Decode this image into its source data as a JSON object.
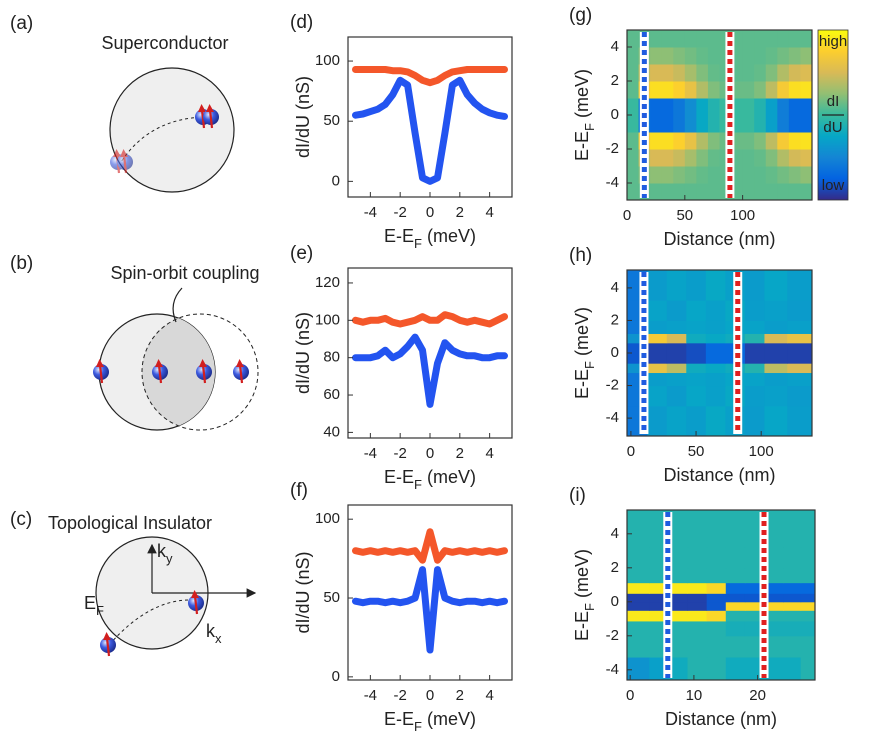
{
  "diagrams": {
    "a": {
      "label": "(a)",
      "title": "Superconductor"
    },
    "b": {
      "label": "(b)",
      "title": "Spin-orbit coupling"
    },
    "c": {
      "label": "(c)",
      "title": "Topological Insulator",
      "ky": [
        "k",
        "y"
      ],
      "kx": [
        "k",
        "x"
      ],
      "ef": [
        "E",
        "F"
      ]
    }
  },
  "chart_data": [
    {
      "type": "line",
      "label": "(d)",
      "xlabel": [
        "E-E",
        "F",
        " (meV)"
      ],
      "ylabel": "dI/dU (nS)",
      "x": [
        -5,
        -4.5,
        -4,
        -3.5,
        -3,
        -2.5,
        -2,
        -1.5,
        -1,
        -0.5,
        0,
        0.5,
        1,
        1.5,
        2,
        2.5,
        3,
        3.5,
        4,
        4.5,
        5
      ],
      "series": [
        {
          "color": "#f4572a",
          "values": [
            93,
            93,
            93,
            93,
            93,
            92,
            92,
            91,
            88,
            84,
            82,
            84,
            88,
            91,
            92,
            93,
            93,
            93,
            93,
            93,
            93
          ]
        },
        {
          "color": "#2354f0",
          "values": [
            55,
            56,
            58,
            60,
            64,
            72,
            84,
            80,
            40,
            3,
            0,
            3,
            40,
            80,
            84,
            72,
            65,
            60,
            57,
            55,
            54
          ]
        }
      ],
      "xlim": [
        -5.5,
        5.5
      ],
      "ylim": [
        -13,
        120
      ],
      "xticks": [
        -4,
        -2,
        0,
        2,
        4
      ],
      "yticks": [
        0,
        50,
        100
      ]
    },
    {
      "type": "line",
      "label": "(e)",
      "xlabel": [
        "E-E",
        "F",
        " (meV)"
      ],
      "ylabel": "dI/dU (nS)",
      "x": [
        -5,
        -4.5,
        -4,
        -3.5,
        -3,
        -2.5,
        -2,
        -1.5,
        -1,
        -0.5,
        0,
        0.5,
        1,
        1.5,
        2,
        2.5,
        3,
        3.5,
        4,
        4.5,
        5
      ],
      "series": [
        {
          "color": "#f4572a",
          "values": [
            100,
            99,
            100,
            100,
            101,
            99,
            98,
            99,
            100,
            102,
            100,
            100,
            103,
            102,
            100,
            99,
            100,
            99,
            98,
            100,
            102
          ]
        },
        {
          "color": "#2354f0",
          "values": [
            80,
            80,
            80,
            81,
            84,
            80,
            82,
            86,
            91,
            84,
            55,
            77,
            88,
            84,
            82,
            81,
            81,
            80,
            80,
            81,
            81
          ]
        }
      ],
      "xlim": [
        -5.5,
        5.5
      ],
      "ylim": [
        37,
        128
      ],
      "xticks": [
        -4,
        -2,
        0,
        2,
        4
      ],
      "yticks": [
        40,
        60,
        80,
        100,
        120
      ]
    },
    {
      "type": "line",
      "label": "(f)",
      "xlabel": [
        "E-E",
        "F",
        " (meV)"
      ],
      "ylabel": "dI/dU (nS)",
      "x": [
        -5,
        -4.5,
        -4,
        -3.5,
        -3,
        -2.5,
        -2,
        -1.5,
        -1,
        -0.5,
        0,
        0.5,
        1,
        1.5,
        2,
        2.5,
        3,
        3.5,
        4,
        4.5,
        5
      ],
      "series": [
        {
          "color": "#f4572a",
          "values": [
            80,
            79,
            80,
            79,
            80,
            79,
            80,
            79,
            80,
            74,
            92,
            74,
            80,
            79,
            80,
            79,
            80,
            79,
            80,
            79,
            80
          ]
        },
        {
          "color": "#2354f0",
          "values": [
            48,
            47,
            48,
            48,
            47,
            48,
            47,
            48,
            50,
            68,
            17,
            68,
            50,
            48,
            47,
            48,
            48,
            47,
            48,
            47,
            48
          ]
        }
      ],
      "xlim": [
        -5.5,
        5.5
      ],
      "ylim": [
        -2,
        109
      ],
      "xticks": [
        -4,
        -2,
        0,
        2,
        4
      ],
      "yticks": [
        0,
        50,
        100
      ]
    },
    {
      "type": "heatmap",
      "label": "(g)",
      "xlabel": "Distance (nm)",
      "ylabel": [
        "E-E",
        "F",
        " (meV)"
      ],
      "x": [
        5,
        15,
        25,
        35,
        45,
        55,
        65,
        75,
        85,
        95,
        105,
        115,
        125,
        135,
        145,
        155
      ],
      "y": [
        -4.5,
        -3.5,
        -2.5,
        -1.5,
        -0.5,
        0.5,
        1.5,
        2.5,
        3.5,
        4.5
      ],
      "z": [
        [
          0.55,
          0.55,
          0.55,
          0.55,
          0.55,
          0.55,
          0.55,
          0.55,
          0.55,
          0.55,
          0.55,
          0.55,
          0.55,
          0.55,
          0.55,
          0.55
        ],
        [
          0.55,
          0.6,
          0.62,
          0.62,
          0.6,
          0.58,
          0.56,
          0.55,
          0.55,
          0.55,
          0.55,
          0.55,
          0.56,
          0.58,
          0.6,
          0.62
        ],
        [
          0.55,
          0.7,
          0.75,
          0.75,
          0.72,
          0.66,
          0.6,
          0.56,
          0.55,
          0.55,
          0.55,
          0.56,
          0.6,
          0.68,
          0.74,
          0.76
        ],
        [
          0.55,
          0.85,
          0.92,
          0.92,
          0.88,
          0.8,
          0.68,
          0.6,
          0.57,
          0.57,
          0.57,
          0.6,
          0.7,
          0.85,
          0.92,
          0.93
        ],
        [
          0.5,
          0.2,
          0.15,
          0.15,
          0.2,
          0.28,
          0.38,
          0.45,
          0.5,
          0.5,
          0.5,
          0.45,
          0.35,
          0.22,
          0.15,
          0.15
        ],
        [
          0.5,
          0.2,
          0.15,
          0.15,
          0.2,
          0.28,
          0.38,
          0.45,
          0.5,
          0.5,
          0.5,
          0.45,
          0.35,
          0.22,
          0.15,
          0.15
        ],
        [
          0.55,
          0.85,
          0.92,
          0.92,
          0.88,
          0.8,
          0.68,
          0.6,
          0.57,
          0.57,
          0.57,
          0.6,
          0.7,
          0.85,
          0.92,
          0.93
        ],
        [
          0.55,
          0.7,
          0.75,
          0.75,
          0.72,
          0.66,
          0.6,
          0.56,
          0.55,
          0.55,
          0.55,
          0.56,
          0.6,
          0.68,
          0.74,
          0.76
        ],
        [
          0.55,
          0.6,
          0.62,
          0.62,
          0.6,
          0.58,
          0.56,
          0.55,
          0.55,
          0.55,
          0.55,
          0.55,
          0.56,
          0.58,
          0.6,
          0.62
        ],
        [
          0.55,
          0.55,
          0.55,
          0.55,
          0.55,
          0.55,
          0.55,
          0.55,
          0.55,
          0.55,
          0.55,
          0.55,
          0.55,
          0.55,
          0.55,
          0.55
        ]
      ],
      "clim": [
        0,
        1
      ],
      "colormap": [
        "#352a87",
        "#0363e1",
        "#1485d4",
        "#06a7c6",
        "#38b99e",
        "#92bf73",
        "#d9ba56",
        "#fcce2e",
        "#f9fb0e"
      ],
      "lines": [
        {
          "x": 15,
          "color": "#1f5ce0"
        },
        {
          "x": 89,
          "color": "#e0201f"
        }
      ],
      "colorbar": {
        "high": "high",
        "low": "low",
        "label": [
          "dI",
          "dU"
        ]
      },
      "xlim": [
        0,
        160
      ],
      "ylim": [
        -5,
        5
      ],
      "xticks": [
        0,
        50,
        100
      ],
      "yticks": [
        -4,
        -2,
        0,
        2,
        4
      ]
    },
    {
      "type": "heatmap",
      "label": "(h)",
      "xlabel": "Distance (nm)",
      "ylabel": [
        "E-E",
        "F",
        " (meV)"
      ],
      "x": [
        5,
        20,
        35,
        50,
        65,
        80,
        95,
        110,
        130
      ],
      "y": [
        -4,
        -2.5,
        -1.5,
        -0.9,
        -0.35,
        0.35,
        0.9,
        1.5,
        2.5,
        4
      ],
      "z": [
        [
          0.2,
          0.33,
          0.36,
          0.34,
          0.38,
          0.35,
          0.33,
          0.37,
          0.34
        ],
        [
          0.2,
          0.36,
          0.33,
          0.37,
          0.35,
          0.38,
          0.34,
          0.35,
          0.33
        ],
        [
          0.2,
          0.34,
          0.35,
          0.36,
          0.35,
          0.37,
          0.36,
          0.34,
          0.35
        ],
        [
          0.3,
          0.8,
          0.7,
          0.4,
          0.38,
          0.4,
          0.45,
          0.7,
          0.75
        ],
        [
          0.1,
          0.05,
          0.05,
          0.08,
          0.15,
          0.15,
          0.05,
          0.05,
          0.05
        ],
        [
          0.1,
          0.05,
          0.05,
          0.08,
          0.15,
          0.15,
          0.05,
          0.05,
          0.05
        ],
        [
          0.3,
          0.85,
          0.75,
          0.4,
          0.38,
          0.4,
          0.45,
          0.75,
          0.8
        ],
        [
          0.2,
          0.34,
          0.35,
          0.36,
          0.35,
          0.37,
          0.36,
          0.34,
          0.35
        ],
        [
          0.2,
          0.36,
          0.33,
          0.37,
          0.35,
          0.38,
          0.34,
          0.35,
          0.33
        ],
        [
          0.2,
          0.33,
          0.36,
          0.34,
          0.38,
          0.35,
          0.33,
          0.37,
          0.34
        ]
      ],
      "clim": [
        0,
        1
      ],
      "colormap": [
        "#352a87",
        "#0363e1",
        "#1485d4",
        "#06a7c6",
        "#38b99e",
        "#92bf73",
        "#d9ba56",
        "#fcce2e",
        "#f9fb0e"
      ],
      "lines": [
        {
          "x": 10,
          "color": "#1f5ce0"
        },
        {
          "x": 82,
          "color": "#e0201f"
        }
      ],
      "xlim": [
        -3,
        139
      ],
      "ylim": [
        -5.1,
        5.1
      ],
      "xticks": [
        0,
        50,
        100
      ],
      "yticks": [
        -4,
        -2,
        0,
        2,
        4
      ]
    },
    {
      "type": "heatmap",
      "label": "(i)",
      "xlabel": "Distance (nm)",
      "ylabel": [
        "E-E",
        "F",
        " (meV)"
      ],
      "x": [
        1.5,
        4.5,
        7.5,
        10.5,
        13.5,
        16.5,
        19.5,
        22.5,
        25.5,
        28
      ],
      "y": [
        -4,
        -2.5,
        -1.5,
        -0.75,
        -0.25,
        0.25,
        0.75,
        1.5,
        2.5,
        4
      ],
      "z": [
        [
          0.3,
          0.35,
          0.4,
          0.45,
          0.45,
          0.4,
          0.4,
          0.4,
          0.4,
          0.45
        ],
        [
          0.45,
          0.45,
          0.45,
          0.45,
          0.45,
          0.45,
          0.45,
          0.45,
          0.45,
          0.45
        ],
        [
          0.45,
          0.45,
          0.45,
          0.45,
          0.45,
          0.42,
          0.42,
          0.42,
          0.42,
          0.42
        ],
        [
          0.95,
          0.95,
          0.95,
          0.95,
          0.9,
          0.45,
          0.45,
          0.45,
          0.45,
          0.45
        ],
        [
          0.05,
          0.05,
          0.05,
          0.05,
          0.1,
          0.9,
          0.9,
          0.9,
          0.9,
          0.9
        ],
        [
          0.05,
          0.05,
          0.05,
          0.05,
          0.1,
          0.1,
          0.1,
          0.1,
          0.1,
          0.1
        ],
        [
          0.95,
          0.95,
          0.95,
          0.95,
          0.9,
          0.15,
          0.15,
          0.15,
          0.15,
          0.15
        ],
        [
          0.45,
          0.45,
          0.45,
          0.45,
          0.45,
          0.45,
          0.45,
          0.45,
          0.45,
          0.45
        ],
        [
          0.45,
          0.45,
          0.45,
          0.45,
          0.45,
          0.45,
          0.45,
          0.45,
          0.45,
          0.45
        ],
        [
          0.45,
          0.45,
          0.45,
          0.45,
          0.45,
          0.45,
          0.45,
          0.45,
          0.45,
          0.45
        ]
      ],
      "clim": [
        0,
        1
      ],
      "colormap": [
        "#352a87",
        "#0363e1",
        "#1485d4",
        "#06a7c6",
        "#38b99e",
        "#92bf73",
        "#d9ba56",
        "#fcce2e",
        "#f9fb0e"
      ],
      "lines": [
        {
          "x": 5.9,
          "color": "#1f5ce0"
        },
        {
          "x": 21,
          "color": "#e0201f"
        }
      ],
      "xlim": [
        -0.5,
        29
      ],
      "ylim": [
        -4.6,
        5.4
      ],
      "xticks": [
        0,
        10,
        20
      ],
      "yticks": [
        -4,
        -2,
        0,
        2,
        4
      ]
    }
  ]
}
